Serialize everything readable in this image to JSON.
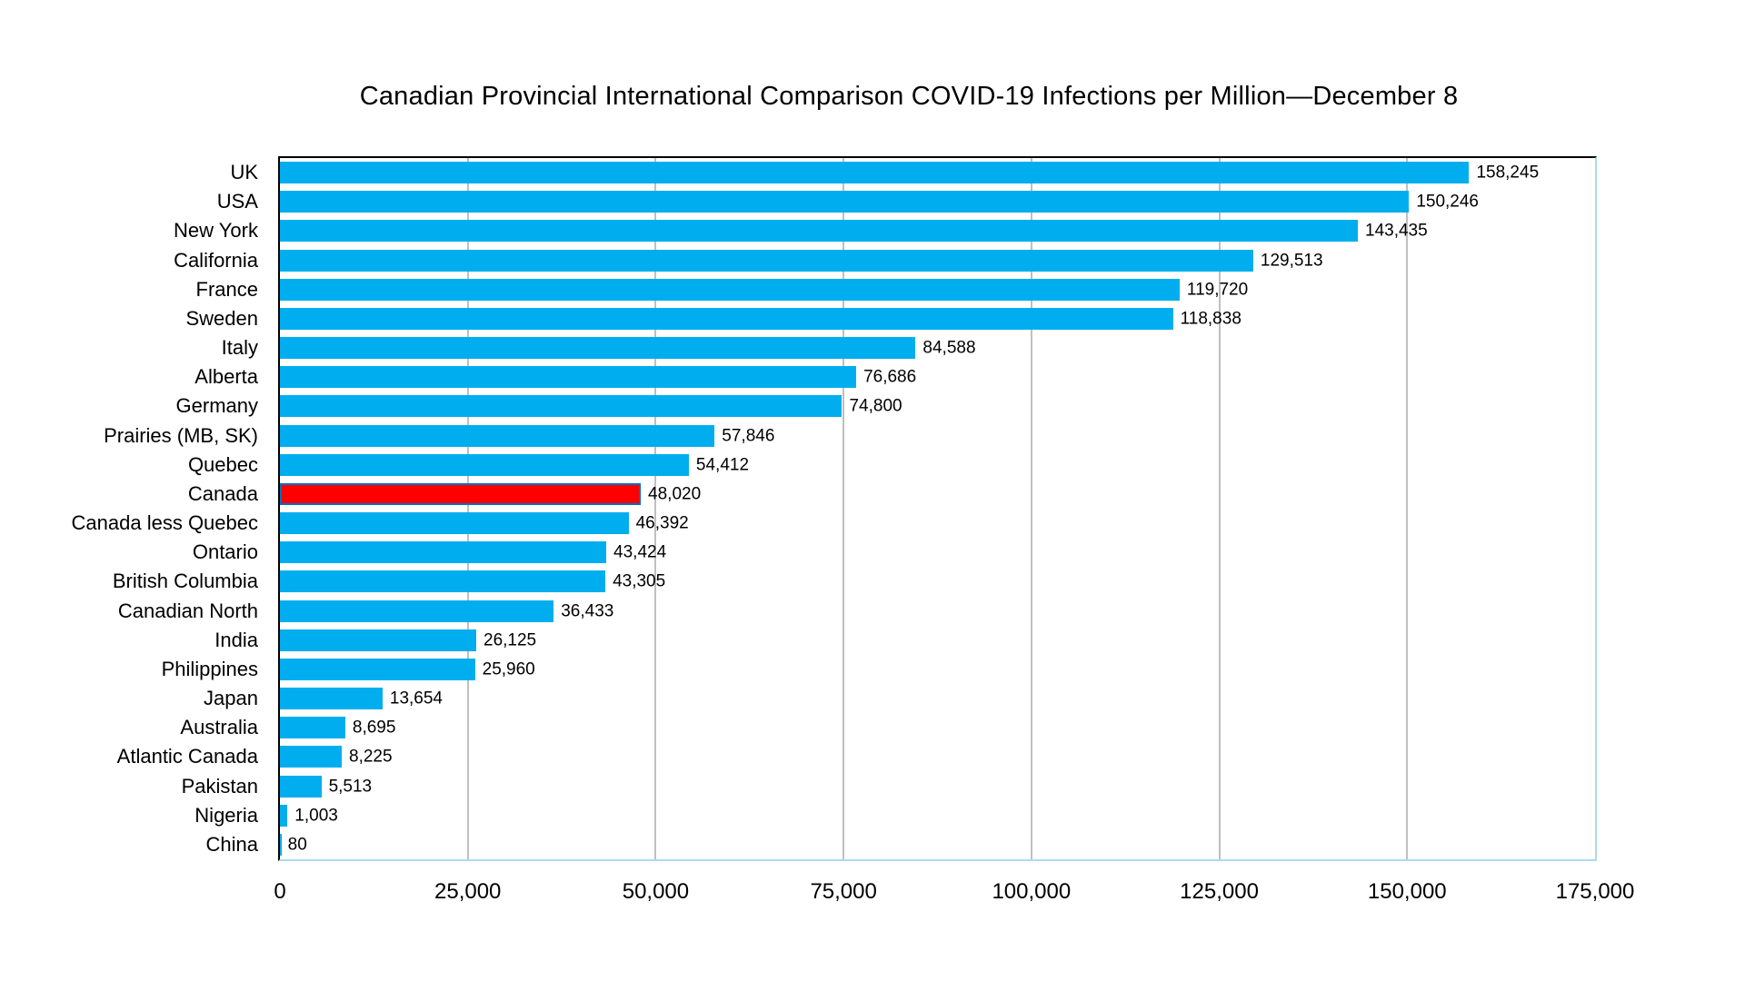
{
  "chart_data": {
    "type": "bar",
    "orientation": "horizontal",
    "title": "Canadian Provincial International Comparison COVID-19 Infections per Million—December 8",
    "categories": [
      "UK",
      "USA",
      "New York",
      "California",
      "France",
      "Sweden",
      "Italy",
      "Alberta",
      "Germany",
      "Prairies (MB, SK)",
      "Quebec",
      "Canada",
      "Canada less Quebec",
      "Ontario",
      "British Columbia",
      "Canadian North",
      "India",
      "Philippines",
      "Japan",
      "Australia",
      "Atlantic Canada",
      "Pakistan",
      "Nigeria",
      "China"
    ],
    "values": [
      158245,
      150246,
      143435,
      129513,
      119720,
      118838,
      84588,
      76686,
      74800,
      57846,
      54412,
      48020,
      46392,
      43424,
      43305,
      36433,
      26125,
      25960,
      13654,
      8695,
      8225,
      5513,
      1003,
      80
    ],
    "value_labels": [
      "158,245",
      "150,246",
      "143,435",
      "129,513",
      "119,720",
      "118,838",
      "84,588",
      "76,686",
      "74,800",
      "57,846",
      "54,412",
      "48,020",
      "46,392",
      "43,424",
      "43,305",
      "36,433",
      "26,125",
      "25,960",
      "13,654",
      "8,695",
      "8,225",
      "5,513",
      "1,003",
      "80"
    ],
    "xlabel": "",
    "ylabel": "",
    "xlim": [
      0,
      175000
    ],
    "x_ticks": [
      "0",
      "25,000",
      "50,000",
      "75,000",
      "100,000",
      "125,000",
      "150,000",
      "175,000"
    ],
    "grid": true,
    "legend": "none",
    "bar_color": "#00AEEF",
    "highlight_category": "Canada",
    "highlight_color": "#FF0000",
    "highlight_border": "#0070C0",
    "gridline_color": "#BFBFBF",
    "frame_color": "#A8DCF0",
    "axis_line_color": "#000000"
  }
}
